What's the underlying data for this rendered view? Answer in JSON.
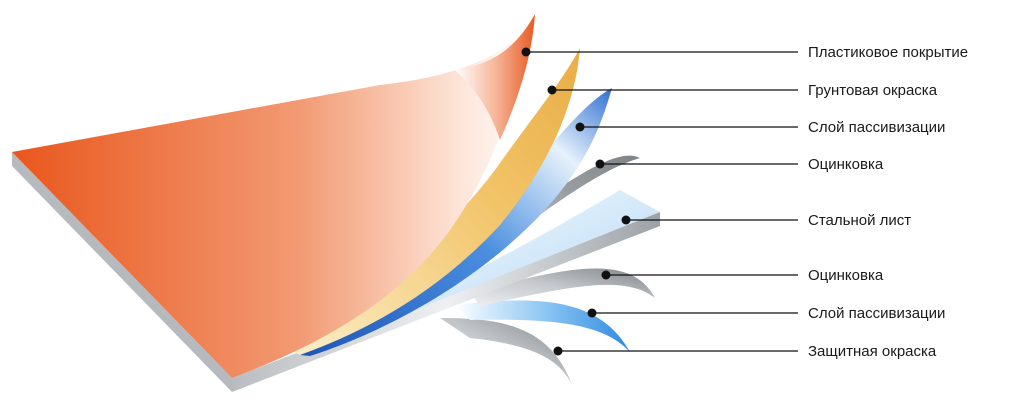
{
  "layers": [
    {
      "id": "plastic-coating",
      "label": "Пластиковое покрытие",
      "color": "#e8612c"
    },
    {
      "id": "primer-top",
      "label": "Грунтовая окраска",
      "color": "#f0c36a"
    },
    {
      "id": "passivation-top",
      "label": "Слой пассивизации",
      "color": "#2f6fd0"
    },
    {
      "id": "zinc-top",
      "label": "Оцинковка",
      "color": "#9a9ea3"
    },
    {
      "id": "steel-sheet",
      "label": "Стальной лист",
      "color": "#bcdcf5"
    },
    {
      "id": "zinc-bottom",
      "label": "Оцинковка",
      "color": "#a3a7ab"
    },
    {
      "id": "passivation-bottom",
      "label": "Слой пассивизации",
      "color": "#3e9be6"
    },
    {
      "id": "protective-paint",
      "label": "Защитная окраска",
      "color": "#8e9398"
    }
  ]
}
